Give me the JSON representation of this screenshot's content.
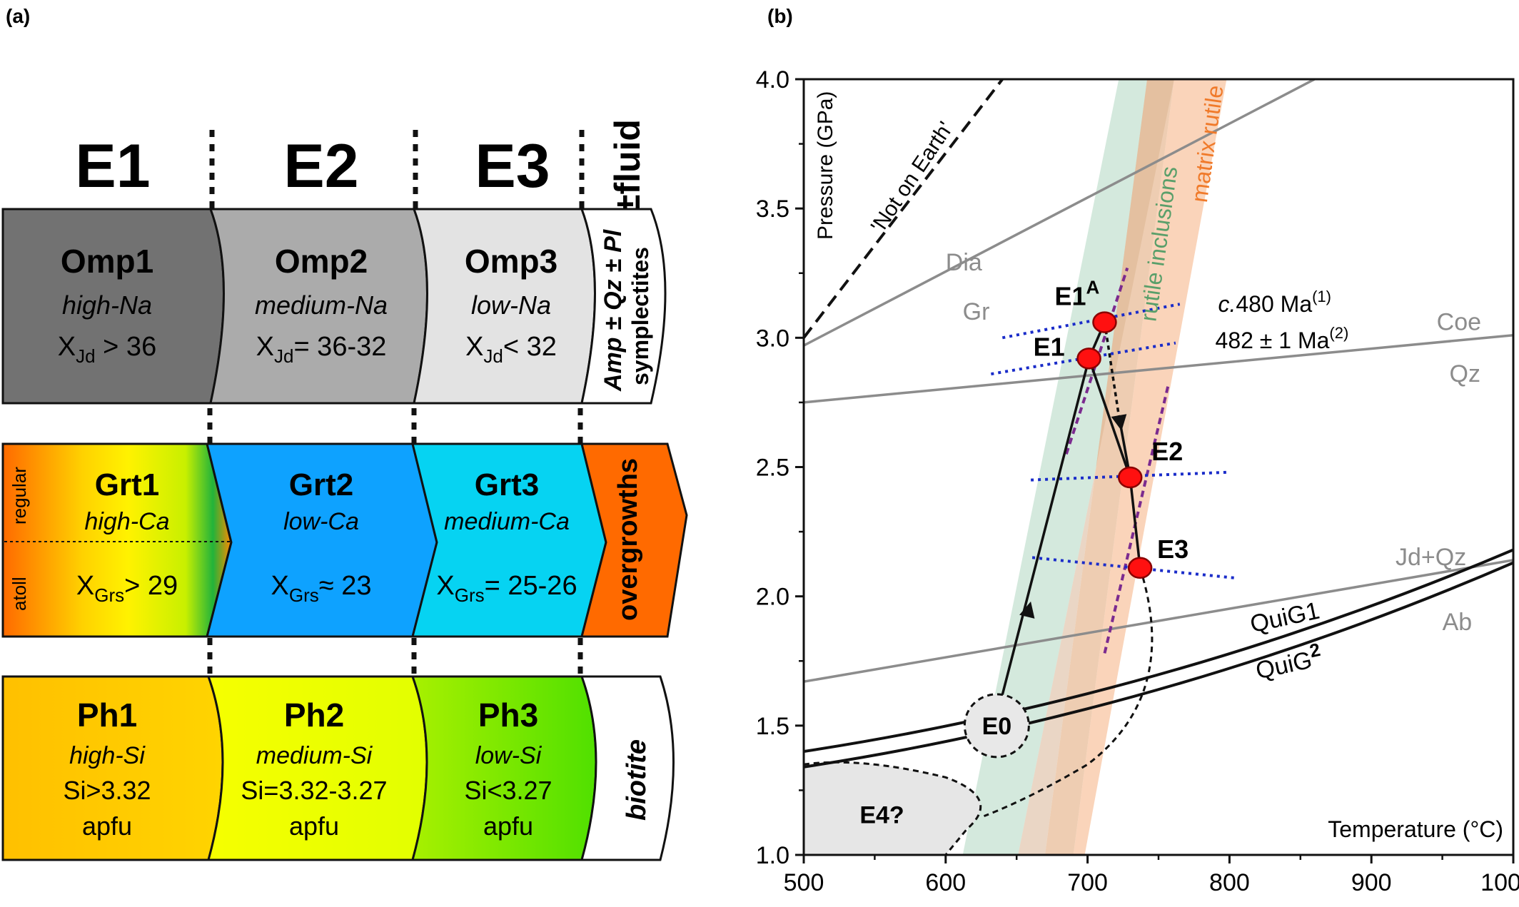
{
  "panel_a": {
    "label": "(a)",
    "stages": [
      "E1",
      "E2",
      "E3"
    ],
    "fluid_label": "±fluid",
    "omphacite": [
      {
        "name": "Omp1",
        "sub": "high-Na",
        "xlabel": "X",
        "xsub": "Jd",
        "value": " > 36",
        "color": "#727272"
      },
      {
        "name": "Omp2",
        "sub": "medium-Na",
        "xlabel": "X",
        "xsub": "Jd",
        "value": "= 36-32",
        "color": "#ababab"
      },
      {
        "name": "Omp3",
        "sub": "low-Na",
        "xlabel": "X",
        "xsub": "Jd",
        "value": "< 32",
        "color": "#e3e3e3"
      }
    ],
    "omp_cap": {
      "line1": "Amp ± Qz ± Pl",
      "line2": "symplectites"
    },
    "garnet": [
      {
        "name": "Grt1",
        "sub": "high-Ca",
        "xlabel": "X",
        "xsub": "Grs",
        "value": "> 29"
      },
      {
        "name": "Grt2",
        "sub": "low-Ca",
        "xlabel": "X",
        "xsub": "Grs",
        "value": "≈ 23",
        "color": "#0ea2ff"
      },
      {
        "name": "Grt3",
        "sub": "medium-Ca",
        "xlabel": "X",
        "xsub": "Grs",
        "value": "= 25-26",
        "color": "#06d3f2"
      }
    ],
    "grt_zone_labels": {
      "top": "regular",
      "bottom": "atoll"
    },
    "grt_cap": "overgrowths",
    "phengite": [
      {
        "name": "Ph1",
        "sub": "high-Si",
        "value": "Si>3.32",
        "unit": "apfu"
      },
      {
        "name": "Ph2",
        "sub": "medium-Si",
        "value": "Si=3.32-3.27",
        "unit": "apfu"
      },
      {
        "name": "Ph3",
        "sub": "low-Si",
        "value": "Si<3.27",
        "unit": "apfu"
      }
    ],
    "ph_cap": "biotite"
  },
  "panel_b": {
    "label": "(b)",
    "chart_data": {
      "type": "line",
      "xlabel": "Temperature (°C)",
      "ylabel": "Pressure (GPa)",
      "xlim": [
        500,
        1000
      ],
      "ylim": [
        1.0,
        4.0
      ],
      "xticks": [
        "500",
        "600",
        "700",
        "800",
        "900",
        "1000"
      ],
      "yticks": [
        "1.0",
        "1.5",
        "2.0",
        "2.5",
        "3.0",
        "3.5",
        "4.0"
      ],
      "points": [
        {
          "name": "E1",
          "label_sup": "",
          "T": 701,
          "P": 2.92
        },
        {
          "name": "E1",
          "label_sup": "A",
          "T": 712,
          "P": 3.06
        },
        {
          "name": "E2",
          "label_sup": "",
          "T": 730,
          "P": 2.46
        },
        {
          "name": "E3",
          "label_sup": "",
          "T": 737,
          "P": 2.11
        }
      ],
      "fields": [
        {
          "name": "E0",
          "T": 636,
          "P": 1.5
        },
        {
          "name": "E4?",
          "T": 540,
          "P": 1.2
        }
      ],
      "bands": [
        "rutile inclusions",
        "matrix rutile"
      ],
      "reaction_labels": [
        "Dia",
        "Gr",
        "Coe",
        "Qz",
        "Jd+Qz",
        "Ab",
        "QuiG1",
        "QuiG",
        "2"
      ],
      "limit_label": "'Not on Earth'",
      "age_text": {
        "line1_prefix": "c.",
        "line1": "480 Ma",
        "line1_sup": "(1)",
        "line2": "482 ± 1 Ma",
        "line2_sup": "(2)"
      }
    }
  }
}
